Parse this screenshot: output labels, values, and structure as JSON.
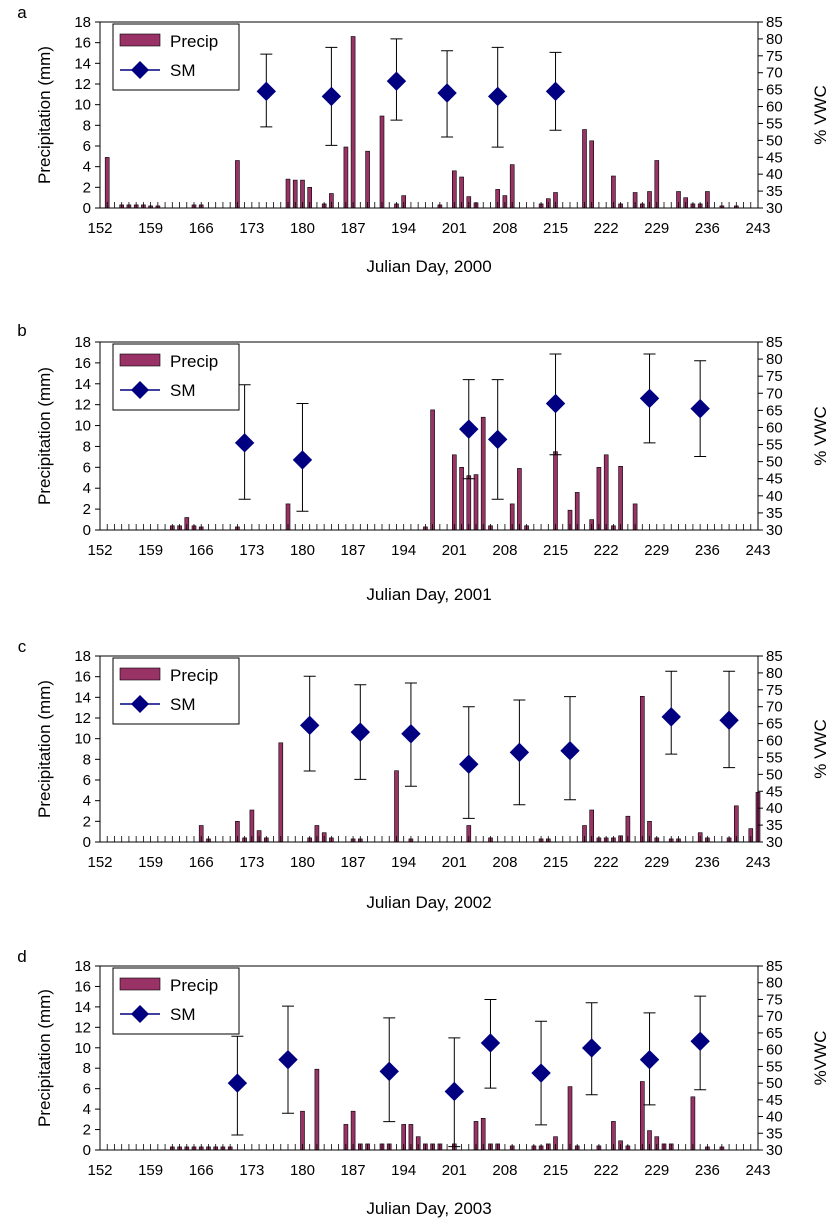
{
  "colors": {
    "precip": "#993366",
    "sm": "#000080",
    "axis": "#000000"
  },
  "chart_data": [
    {
      "panel_label": "a",
      "type": "bar+scatter",
      "xlabel": "Julian Day, 2000",
      "ylabel": "Precipitation (mm)",
      "y2label": "% VWC",
      "xlim": [
        152,
        243
      ],
      "ylim": [
        0,
        18
      ],
      "y2lim": [
        30,
        85
      ],
      "x_ticks": [
        "152",
        "159",
        "166",
        "173",
        "180",
        "187",
        "194",
        "201",
        "208",
        "215",
        "222",
        "229",
        "236",
        "243"
      ],
      "y_ticks": [
        "0",
        "2",
        "4",
        "6",
        "8",
        "10",
        "12",
        "14",
        "16",
        "18"
      ],
      "y2_ticks": [
        "30",
        "35",
        "40",
        "45",
        "50",
        "55",
        "60",
        "65",
        "70",
        "75",
        "80",
        "85"
      ],
      "legend": {
        "placement": "top-left",
        "precip_label": "Precip",
        "sm_label": "SM"
      },
      "precip": [
        [
          153,
          4.9
        ],
        [
          155,
          0.3
        ],
        [
          156,
          0.3
        ],
        [
          157,
          0.3
        ],
        [
          158,
          0.3
        ],
        [
          159,
          0.2
        ],
        [
          160,
          0.2
        ],
        [
          165,
          0.3
        ],
        [
          166,
          0.3
        ],
        [
          171,
          4.6
        ],
        [
          178,
          2.8
        ],
        [
          179,
          2.7
        ],
        [
          180,
          2.7
        ],
        [
          181,
          2.0
        ],
        [
          183,
          0.4
        ],
        [
          184,
          1.4
        ],
        [
          186,
          5.9
        ],
        [
          187,
          16.6
        ],
        [
          189,
          5.5
        ],
        [
          191,
          8.9
        ],
        [
          193,
          0.4
        ],
        [
          194,
          1.2
        ],
        [
          199,
          0.3
        ],
        [
          201,
          3.6
        ],
        [
          202,
          3.0
        ],
        [
          203,
          1.1
        ],
        [
          204,
          0.5
        ],
        [
          207,
          1.8
        ],
        [
          208,
          1.2
        ],
        [
          209,
          4.2
        ],
        [
          213,
          0.4
        ],
        [
          214,
          0.9
        ],
        [
          215,
          1.5
        ],
        [
          219,
          7.6
        ],
        [
          220,
          6.5
        ],
        [
          223,
          3.1
        ],
        [
          224,
          0.4
        ],
        [
          226,
          1.5
        ],
        [
          227,
          0.4
        ],
        [
          228,
          1.6
        ],
        [
          229,
          4.6
        ],
        [
          232,
          1.6
        ],
        [
          233,
          1.0
        ],
        [
          234,
          0.4
        ],
        [
          235,
          0.4
        ],
        [
          236,
          1.6
        ],
        [
          238,
          0.2
        ],
        [
          240,
          0.2
        ]
      ],
      "sm": [
        [
          175,
          64.5,
          54.0,
          75.5
        ],
        [
          184,
          63.0,
          48.5,
          77.5
        ],
        [
          193,
          67.5,
          56.0,
          80.0
        ],
        [
          200,
          64.0,
          51.0,
          76.5
        ],
        [
          207,
          63.0,
          48.0,
          77.5
        ],
        [
          215,
          64.5,
          53.0,
          76.0
        ]
      ]
    },
    {
      "panel_label": "b",
      "type": "bar+scatter",
      "xlabel": "Julian Day, 2001",
      "ylabel": "Precipitation (mm)",
      "y2label": "% VWC",
      "xlim": [
        152,
        243
      ],
      "ylim": [
        0,
        18
      ],
      "y2lim": [
        30,
        85
      ],
      "x_ticks": [
        "152",
        "159",
        "166",
        "173",
        "180",
        "187",
        "194",
        "201",
        "208",
        "215",
        "222",
        "229",
        "236",
        "243"
      ],
      "y_ticks": [
        "0",
        "2",
        "4",
        "6",
        "8",
        "10",
        "12",
        "14",
        "16",
        "18"
      ],
      "y2_ticks": [
        "30",
        "35",
        "40",
        "45",
        "50",
        "55",
        "60",
        "65",
        "70",
        "75",
        "80",
        "85"
      ],
      "legend": {
        "placement": "top-left",
        "precip_label": "Precip",
        "sm_label": "SM"
      },
      "precip": [
        [
          162,
          0.4
        ],
        [
          163,
          0.4
        ],
        [
          164,
          1.2
        ],
        [
          165,
          0.4
        ],
        [
          166,
          0.3
        ],
        [
          171,
          0.3
        ],
        [
          178,
          2.5
        ],
        [
          197,
          0.3
        ],
        [
          198,
          11.5
        ],
        [
          201,
          7.2
        ],
        [
          202,
          6.0
        ],
        [
          203,
          5.2
        ],
        [
          204,
          5.3
        ],
        [
          205,
          10.8
        ],
        [
          206,
          0.4
        ],
        [
          209,
          2.5
        ],
        [
          210,
          5.9
        ],
        [
          211,
          0.4
        ],
        [
          215,
          7.5
        ],
        [
          217,
          1.9
        ],
        [
          218,
          3.6
        ],
        [
          220,
          1.0
        ],
        [
          221,
          6.0
        ],
        [
          222,
          7.2
        ],
        [
          223,
          0.4
        ],
        [
          224,
          6.1
        ],
        [
          226,
          2.5
        ]
      ],
      "sm": [
        [
          172,
          55.5,
          39.0,
          72.5
        ],
        [
          180,
          50.5,
          35.5,
          67.0
        ],
        [
          203,
          59.5,
          45.0,
          74.0
        ],
        [
          207,
          56.5,
          39.0,
          74.0
        ],
        [
          215,
          67.0,
          52.0,
          81.5
        ],
        [
          228,
          68.5,
          55.5,
          81.5
        ],
        [
          235,
          65.5,
          51.5,
          79.5
        ]
      ]
    },
    {
      "panel_label": "c",
      "type": "bar+scatter",
      "xlabel": "Julian Day, 2002",
      "ylabel": "Precipitation (mm)",
      "y2label": "% VWC",
      "xlim": [
        152,
        243
      ],
      "ylim": [
        0,
        18
      ],
      "y2lim": [
        30,
        85
      ],
      "x_ticks": [
        "152",
        "159",
        "166",
        "173",
        "180",
        "187",
        "194",
        "201",
        "208",
        "215",
        "222",
        "229",
        "236",
        "243"
      ],
      "y_ticks": [
        "0",
        "2",
        "4",
        "6",
        "8",
        "10",
        "12",
        "14",
        "16",
        "18"
      ],
      "y2_ticks": [
        "30",
        "35",
        "40",
        "45",
        "50",
        "55",
        "60",
        "65",
        "70",
        "75",
        "80",
        "85"
      ],
      "legend": {
        "placement": "top-left",
        "precip_label": "Precip",
        "sm_label": "SM"
      },
      "precip": [
        [
          166,
          1.6
        ],
        [
          167,
          0.3
        ],
        [
          171,
          2.0
        ],
        [
          172,
          0.4
        ],
        [
          173,
          3.1
        ],
        [
          174,
          1.1
        ],
        [
          175,
          0.4
        ],
        [
          177,
          9.6
        ],
        [
          181,
          0.4
        ],
        [
          182,
          1.6
        ],
        [
          183,
          0.9
        ],
        [
          184,
          0.4
        ],
        [
          187,
          0.3
        ],
        [
          188,
          0.3
        ],
        [
          193,
          6.9
        ],
        [
          195,
          0.3
        ],
        [
          203,
          1.6
        ],
        [
          206,
          0.4
        ],
        [
          213,
          0.3
        ],
        [
          214,
          0.3
        ],
        [
          219,
          1.6
        ],
        [
          220,
          3.1
        ],
        [
          221,
          0.4
        ],
        [
          222,
          0.4
        ],
        [
          223,
          0.4
        ],
        [
          224,
          0.6
        ],
        [
          225,
          2.5
        ],
        [
          227,
          14.1
        ],
        [
          228,
          2.0
        ],
        [
          229,
          0.4
        ],
        [
          231,
          0.3
        ],
        [
          232,
          0.3
        ],
        [
          235,
          0.9
        ],
        [
          236,
          0.4
        ],
        [
          239,
          0.4
        ],
        [
          240,
          3.5
        ],
        [
          242,
          1.3
        ],
        [
          243,
          4.8
        ]
      ],
      "sm": [
        [
          181,
          64.5,
          51.0,
          79.0
        ],
        [
          188,
          62.5,
          48.5,
          76.5
        ],
        [
          195,
          62.0,
          46.5,
          77.0
        ],
        [
          203,
          53.0,
          37.0,
          70.0
        ],
        [
          210,
          56.5,
          41.0,
          72.0
        ],
        [
          217,
          57.0,
          42.5,
          73.0
        ],
        [
          231,
          67.0,
          56.0,
          80.5
        ],
        [
          239,
          66.0,
          52.0,
          80.5
        ]
      ]
    },
    {
      "panel_label": "d",
      "type": "bar+scatter",
      "xlabel": "Julian Day, 2003",
      "ylabel": "Precipitation (mm)",
      "y2label": "%VWC",
      "xlim": [
        152,
        243
      ],
      "ylim": [
        0,
        18
      ],
      "y2lim": [
        30,
        85
      ],
      "x_ticks": [
        "152",
        "159",
        "166",
        "173",
        "180",
        "187",
        "194",
        "201",
        "208",
        "215",
        "222",
        "229",
        "236",
        "243"
      ],
      "y_ticks": [
        "0",
        "2",
        "4",
        "6",
        "8",
        "10",
        "12",
        "14",
        "16",
        "18"
      ],
      "y2_ticks": [
        "30",
        "35",
        "40",
        "45",
        "50",
        "55",
        "60",
        "65",
        "70",
        "75",
        "80",
        "85"
      ],
      "legend": {
        "placement": "top-left",
        "precip_label": "Precip",
        "sm_label": "SM"
      },
      "precip": [
        [
          162,
          0.3
        ],
        [
          163,
          0.3
        ],
        [
          164,
          0.3
        ],
        [
          165,
          0.3
        ],
        [
          166,
          0.3
        ],
        [
          167,
          0.3
        ],
        [
          168,
          0.3
        ],
        [
          169,
          0.3
        ],
        [
          170,
          0.3
        ],
        [
          180,
          3.8
        ],
        [
          182,
          7.9
        ],
        [
          186,
          2.5
        ],
        [
          187,
          3.8
        ],
        [
          188,
          0.6
        ],
        [
          189,
          0.6
        ],
        [
          191,
          0.6
        ],
        [
          192,
          0.6
        ],
        [
          194,
          2.5
        ],
        [
          195,
          2.5
        ],
        [
          196,
          1.3
        ],
        [
          197,
          0.6
        ],
        [
          198,
          0.6
        ],
        [
          199,
          0.6
        ],
        [
          201,
          0.6
        ],
        [
          204,
          2.8
        ],
        [
          205,
          3.1
        ],
        [
          206,
          0.6
        ],
        [
          207,
          0.6
        ],
        [
          209,
          0.4
        ],
        [
          212,
          0.4
        ],
        [
          213,
          0.4
        ],
        [
          214,
          0.6
        ],
        [
          215,
          1.3
        ],
        [
          217,
          6.2
        ],
        [
          218,
          0.4
        ],
        [
          221,
          0.4
        ],
        [
          223,
          2.8
        ],
        [
          224,
          0.9
        ],
        [
          225,
          0.4
        ],
        [
          227,
          6.7
        ],
        [
          228,
          1.9
        ],
        [
          229,
          1.3
        ],
        [
          230,
          0.6
        ],
        [
          231,
          0.6
        ],
        [
          234,
          5.2
        ],
        [
          236,
          0.3
        ],
        [
          238,
          0.3
        ]
      ],
      "sm": [
        [
          171,
          50.0,
          34.5,
          64.0
        ],
        [
          178,
          57.0,
          41.0,
          73.0
        ],
        [
          192,
          53.5,
          38.5,
          69.5
        ],
        [
          201,
          47.5,
          31.0,
          63.5
        ],
        [
          206,
          62.0,
          48.5,
          75.0
        ],
        [
          213,
          53.0,
          37.5,
          68.5
        ],
        [
          220,
          60.5,
          46.5,
          74.0
        ],
        [
          228,
          57.0,
          43.5,
          71.0
        ],
        [
          235,
          62.5,
          48.0,
          76.0
        ]
      ]
    }
  ]
}
